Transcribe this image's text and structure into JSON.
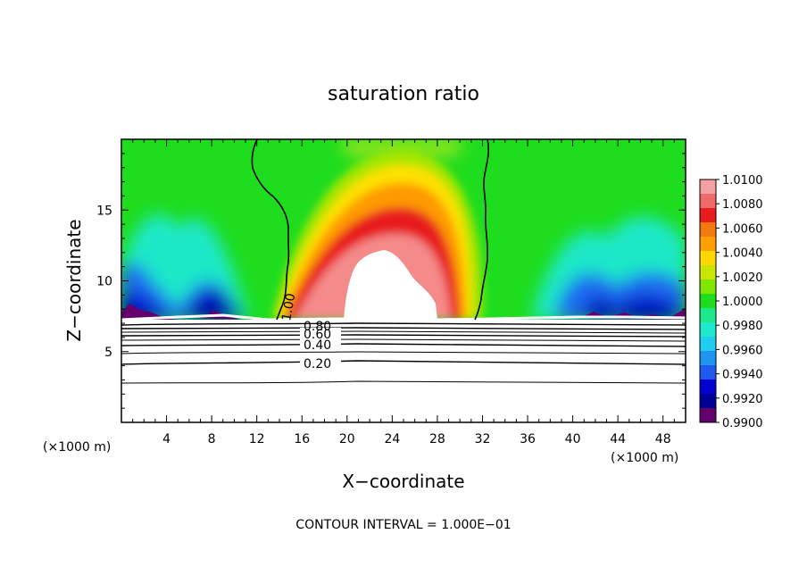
{
  "chart_data": {
    "type": "heatmap",
    "title": "saturation ratio",
    "xlabel": "X−coordinate",
    "ylabel": "Z−coordinate",
    "x_unit_left": "(×1000 m)",
    "x_unit_right": "(×1000 m)",
    "footer": "CONTOUR INTERVAL = 1.000E−01",
    "xlim": [
      0,
      50
    ],
    "ylim": [
      0,
      20
    ],
    "x_ticks": [
      4,
      8,
      12,
      16,
      20,
      24,
      28,
      32,
      36,
      40,
      44,
      48
    ],
    "y_ticks": [
      5,
      10,
      15
    ],
    "colorbar": {
      "levels": [
        "1.0100",
        "1.0080",
        "1.0060",
        "1.0040",
        "1.0020",
        "1.0000",
        "0.9980",
        "0.9960",
        "0.9940",
        "0.9920",
        "0.9900"
      ],
      "range": [
        0.99,
        1.01
      ],
      "colors": [
        "#f5a0a0",
        "#f06a6a",
        "#e81c1c",
        "#f47a10",
        "#ffa000",
        "#ffd800",
        "#c8e600",
        "#7ee600",
        "#1edd1e",
        "#1ee88c",
        "#1ee8d0",
        "#1ecdf0",
        "#1e96f0",
        "#1e5af0",
        "#0000d0",
        "#000096",
        "#64006e"
      ]
    },
    "contour_labels": [
      "1.00",
      "0.80",
      "0.60",
      "0.40",
      "0.20"
    ],
    "contour_levels_below_cloud": [
      0.2,
      0.3,
      0.4,
      0.5,
      0.6,
      0.7,
      0.8,
      0.9
    ],
    "cloud_base_z": 7.5,
    "saturated_core": {
      "x_range": [
        16,
        30
      ],
      "top_z": 12
    }
  }
}
